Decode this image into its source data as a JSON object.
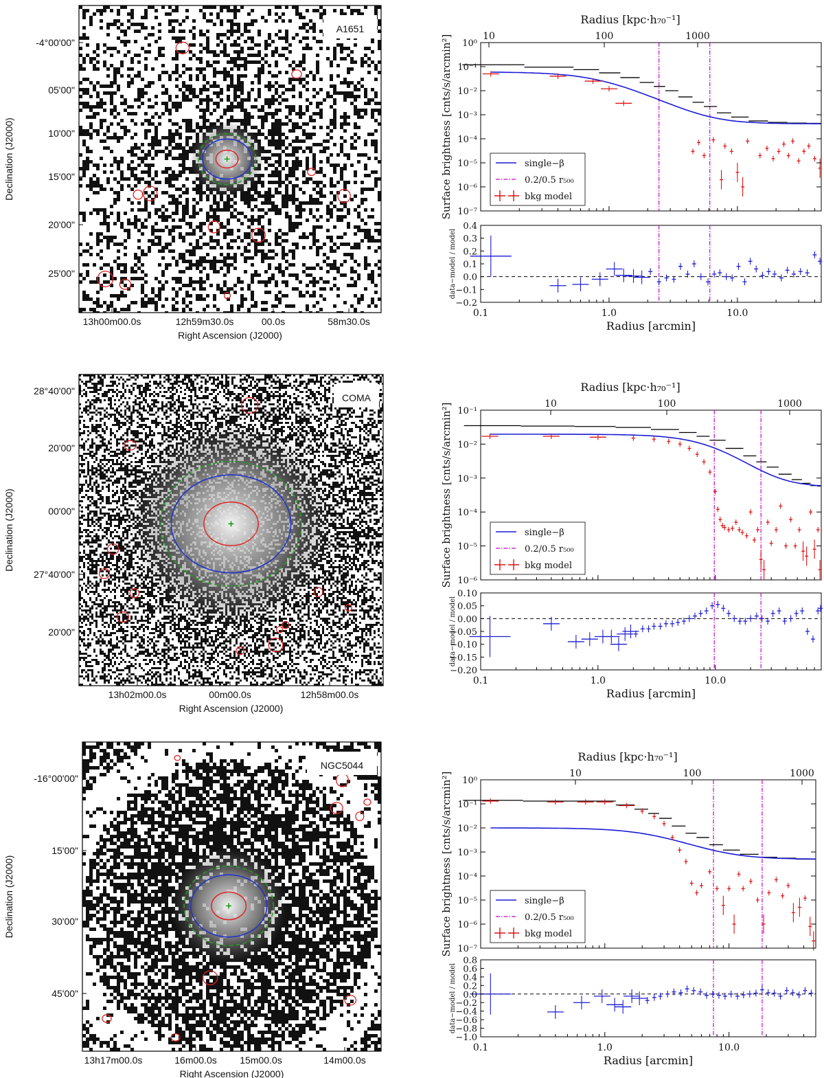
{
  "figure": {
    "panels": [
      {
        "image": {
          "name": "A1651",
          "style": "sparse",
          "dec_ticks": [
            "-4°00'00\"",
            "05'00\"",
            "10'00\"",
            "15'00\"",
            "20'00\"",
            "25'00\""
          ],
          "ra_ticks": [
            "13h00m00.0s",
            "12h59m30.0s",
            "00.0s",
            "58m30.0s"
          ],
          "xlabel": "Right Ascension (J2000)",
          "ylabel": "Declination (J2000)"
        },
        "profile": {
          "top_axis_label": "Radius [kpc·h₇₀⁻¹]",
          "top_ticks": [
            "10",
            "100",
            "1000"
          ],
          "ylabel": "Surface brightness [cnts/s/arcmin²]",
          "y_ticks": [
            "10⁰",
            "10⁻¹",
            "10⁻²",
            "10⁻³",
            "10⁻⁴",
            "10⁻⁵",
            "10⁻⁶",
            "10⁻⁷"
          ],
          "legend": [
            "single−β",
            "0.2/0.5 r₅₀₀",
            "bkg model"
          ],
          "res_ylabel": "data−model / model",
          "res_ticks": [
            "0.4",
            "0.3",
            "0.2",
            "0.1",
            "0.0",
            "−0.1",
            "−0.2"
          ],
          "x_ticks": [
            "0.1",
            "1.0",
            "10.0"
          ],
          "xlabel": "Radius [arcmin]"
        }
      },
      {
        "image": {
          "name": "COMA",
          "style": "diffuse",
          "dec_ticks": [
            "28°40'00\"",
            "20'00\"",
            "00'00\"",
            "27°40'00\"",
            "20'00\""
          ],
          "ra_ticks": [
            "13h02m00.0s",
            "00m00.0s",
            "12h58m00.0s"
          ],
          "xlabel": "Right Ascension (J2000)",
          "ylabel": "Declination (J2000)"
        },
        "profile": {
          "top_axis_label": "Radius [kpc·h₇₀⁻¹]",
          "top_ticks": [
            "10",
            "100",
            "1000"
          ],
          "ylabel": "Surface brightness [cnts/s/arcmin²]",
          "y_ticks": [
            "10⁻¹",
            "10⁻²",
            "10⁻³",
            "10⁻⁴",
            "10⁻⁵",
            "10⁻⁶"
          ],
          "legend": [
            "single−β",
            "0.2/0.5 r₅₀₀",
            "bkg model"
          ],
          "res_ylabel": "data−model / model",
          "res_ticks": [
            "0.10",
            "0.05",
            "0.00",
            "−0.05",
            "−0.10",
            "−0.15",
            "−0.20"
          ],
          "x_ticks": [
            "0.1",
            "1.0",
            "10.0"
          ],
          "xlabel": "Radius [arcmin]"
        }
      },
      {
        "image": {
          "name": "NGC5044",
          "style": "ring",
          "dec_ticks": [
            "-16°00'00\"",
            "15'00\"",
            "30'00\"",
            "45'00\""
          ],
          "ra_ticks": [
            "13h17m00.0s",
            "16m00.0s",
            "15m00.0s",
            "14m00.0s"
          ],
          "xlabel": "Right Ascension (J2000)",
          "ylabel": "Declination (J2000)"
        },
        "profile": {
          "top_axis_label": "Radius [kpc·h₇₀⁻¹]",
          "top_ticks": [
            "10",
            "100",
            "1000"
          ],
          "ylabel": "Surface brightness [cnts/s/arcmin²]",
          "y_ticks": [
            "10⁰",
            "10⁻¹",
            "10⁻²",
            "10⁻³",
            "10⁻⁴",
            "10⁻⁵",
            "10⁻⁶",
            "10⁻⁷"
          ],
          "legend": [
            "single−β",
            "0.2/0.5 r₅₀₀",
            "bkg model"
          ],
          "res_ylabel": "data−model / model",
          "res_ticks": [
            "0.8",
            "0.6",
            "0.4",
            "0.2",
            "0.0",
            "−0.2",
            "−0.4",
            "−0.6",
            "−0.8",
            "−1.0"
          ],
          "x_ticks": [
            "0.1",
            "1.0",
            "10.0"
          ],
          "xlabel": "Radius [arcmin]"
        }
      }
    ]
  },
  "chart_data": [
    {
      "type": "line",
      "cluster": "A1651",
      "xlabel": "Radius [arcmin]",
      "ylabel": "Surface brightness [cnts/s/arcmin²]",
      "x_scale": "log",
      "y_scale": "log",
      "xlim": [
        0.1,
        45
      ],
      "ylim": [
        1e-07,
        1
      ],
      "r500_lines_arcmin": [
        2.45,
        6.1
      ],
      "beta_model": {
        "S0": 0.06,
        "rc": 0.9,
        "beta": 0.6,
        "bkg": 0.00042
      },
      "data_total": {
        "x": [
          0.12,
          0.4,
          0.7,
          1.0,
          1.5,
          2.0,
          2.5,
          3.0,
          4.0,
          5.0,
          6.0,
          8.0,
          10.0,
          15.0,
          20.0,
          30.0,
          40.0
        ],
        "y": [
          0.12,
          0.095,
          0.075,
          0.055,
          0.035,
          0.022,
          0.015,
          0.01,
          0.0055,
          0.0033,
          0.0022,
          0.0012,
          0.0008,
          0.00055,
          0.00048,
          0.00045,
          0.00044
        ]
      },
      "bkg_model": {
        "x": [
          0.12,
          0.4,
          0.75,
          1.0,
          1.3,
          4.5,
          5.0,
          5.5,
          6.5,
          7.5,
          8.0,
          9.0,
          10.0,
          11.0,
          12.0,
          15.0,
          17.0,
          19.0,
          21.0,
          23.0,
          25.0,
          27.0,
          30.0,
          33.0,
          36.0,
          40.0,
          44.0
        ],
        "y": [
          0.05,
          0.04,
          0.025,
          0.012,
          0.003,
          3e-05,
          7e-05,
          2e-05,
          9e-05,
          2e-06,
          5e-05,
          3e-05,
          4e-06,
          1e-06,
          8e-05,
          2e-05,
          4e-05,
          1.5e-05,
          3e-05,
          6e-05,
          2e-05,
          8e-05,
          1.2e-05,
          3e-05,
          5e-05,
          1.5e-05,
          6e-06
        ]
      },
      "residuals": {
        "x": [
          0.12,
          0.4,
          0.6,
          0.85,
          1.1,
          1.3,
          1.55,
          1.8,
          2.1,
          2.45,
          2.8,
          3.2,
          3.6,
          4.1,
          4.6,
          5.2,
          5.9,
          6.6,
          7.3,
          8.2,
          9.1,
          10.2,
          11.4,
          12.6,
          14.0,
          15.7,
          17.5,
          19.5,
          22.0,
          24.5,
          27.5,
          31.0,
          35.0,
          40.0,
          44.0
        ],
        "y": [
          0.16,
          -0.07,
          -0.06,
          -0.02,
          0.06,
          0.01,
          0.005,
          -0.005,
          0.04,
          -0.04,
          -0.01,
          -0.02,
          0.08,
          0.02,
          0.1,
          0.0,
          -0.04,
          0.02,
          0.03,
          0.0,
          -0.01,
          0.08,
          -0.04,
          0.12,
          0.06,
          0.01,
          0.04,
          0.02,
          -0.01,
          0.05,
          0.02,
          0.04,
          0.03,
          0.17,
          0.12
        ],
        "ylim": [
          -0.2,
          0.4
        ]
      }
    },
    {
      "type": "line",
      "cluster": "COMA",
      "xlabel": "Radius [arcmin]",
      "ylabel": "Surface brightness [cnts/s/arcmin²]",
      "x_scale": "log",
      "y_scale": "log",
      "xlim": [
        0.1,
        80
      ],
      "ylim": [
        1e-06,
        0.1
      ],
      "r500_lines_arcmin": [
        9.8,
        24.5
      ],
      "beta_model": {
        "S0": 0.019,
        "rc": 10.0,
        "beta": 0.65,
        "bkg": 0.00055
      },
      "data_total": {
        "x": [
          0.12,
          0.4,
          1.0,
          2.0,
          4.0,
          6.0,
          8.0,
          10.0,
          15.0,
          20.0,
          25.0,
          30.0,
          40.0,
          50.0,
          60.0,
          70.0,
          78.0
        ],
        "y": [
          0.035,
          0.034,
          0.033,
          0.031,
          0.027,
          0.022,
          0.017,
          0.013,
          0.0075,
          0.0045,
          0.003,
          0.0021,
          0.0013,
          0.0009,
          0.0007,
          0.0006,
          0.00058
        ]
      },
      "bkg_model": {
        "x": [
          0.12,
          0.4,
          1.0,
          2.0,
          3.0,
          4.0,
          5.0,
          6.0,
          7.0,
          8.0,
          9.0,
          10.0,
          10.5,
          11.0,
          11.5,
          12.0,
          13.0,
          14.0,
          15.0,
          16.0,
          17.0,
          18.5,
          20.0,
          21.5,
          23.0,
          24.5,
          26.0,
          28.0,
          30.0,
          33.0,
          36.0,
          40.0,
          44.0,
          48.0,
          52.0,
          56.0,
          60.0,
          65.0,
          70.0,
          75.0,
          78.0
        ],
        "y": [
          0.017,
          0.017,
          0.016,
          0.015,
          0.014,
          0.012,
          0.01,
          0.0075,
          0.005,
          0.003,
          0.0015,
          0.0004,
          0.00012,
          6e-05,
          4e-05,
          3.5e-05,
          3e-05,
          3.3e-05,
          5e-05,
          3e-05,
          2.5e-05,
          2e-05,
          0.0001,
          1.5e-05,
          3e-05,
          4e-06,
          2e-06,
          5e-05,
          1.2e-05,
          3e-05,
          0.00015,
          1e-05,
          6e-05,
          1e-05,
          3e-05,
          7e-06,
          5e-06,
          0.0001,
          8e-06,
          3e-05,
          2e-06
        ]
      },
      "residuals": {
        "x": [
          0.12,
          0.4,
          0.65,
          0.85,
          1.1,
          1.3,
          1.5,
          1.7,
          1.9,
          2.1,
          2.4,
          2.7,
          3.0,
          3.4,
          3.8,
          4.3,
          4.8,
          5.4,
          6.0,
          6.7,
          7.5,
          8.4,
          9.4,
          10.5,
          11.7,
          13.0,
          14.5,
          16.2,
          18.0,
          20.0,
          22.5,
          25.0,
          28.0,
          31.0,
          35.0,
          39.0,
          44.0,
          49.0,
          55.0,
          61.0,
          68.0,
          75.0,
          79.0
        ],
        "y": [
          -0.07,
          -0.02,
          -0.09,
          -0.08,
          -0.07,
          -0.07,
          -0.1,
          -0.06,
          -0.05,
          -0.06,
          -0.04,
          -0.04,
          -0.03,
          -0.03,
          -0.02,
          -0.02,
          -0.015,
          -0.01,
          0.0,
          0.01,
          0.02,
          0.03,
          0.05,
          0.055,
          0.04,
          0.02,
          0.0,
          -0.01,
          -0.01,
          0.0,
          0.01,
          0.0,
          -0.01,
          0.02,
          0.03,
          -0.01,
          0.0,
          0.02,
          0.03,
          -0.05,
          -0.08,
          0.03,
          0.04
        ],
        "ylim": [
          -0.2,
          0.1
        ]
      }
    },
    {
      "type": "line",
      "cluster": "NGC5044",
      "xlabel": "Radius [arcmin]",
      "ylabel": "Surface brightness [cnts/s/arcmin²]",
      "x_scale": "log",
      "y_scale": "log",
      "xlim": [
        0.1,
        50
      ],
      "ylim": [
        1e-07,
        1
      ],
      "r500_lines_arcmin": [
        7.5,
        18.5
      ],
      "beta_model": {
        "S0": 0.0095,
        "rc": 2.5,
        "beta": 0.55,
        "bkg": 0.0005
      },
      "data_total": {
        "x": [
          0.12,
          0.4,
          0.7,
          1.0,
          1.5,
          2.0,
          2.5,
          3.0,
          4.0,
          5.0,
          6.0,
          8.0,
          10.0,
          15.0,
          20.0,
          30.0,
          40.0,
          48.0
        ],
        "y": [
          0.14,
          0.13,
          0.13,
          0.13,
          0.09,
          0.06,
          0.04,
          0.025,
          0.012,
          0.006,
          0.004,
          0.002,
          0.0012,
          0.0008,
          0.0006,
          0.00055,
          0.0005,
          0.0005
        ]
      },
      "bkg_model": {
        "x": [
          0.12,
          0.4,
          0.7,
          1.0,
          1.5,
          2.0,
          2.5,
          3.0,
          3.5,
          4.0,
          4.5,
          5.0,
          5.5,
          6.0,
          7.0,
          8.0,
          9.0,
          10.0,
          11.0,
          12.0,
          13.0,
          15.0,
          17.0,
          19.0,
          21.0,
          24.0,
          27.0,
          30.0,
          33.0,
          37.0,
          41.0,
          45.0,
          48.0
        ],
        "y": [
          0.13,
          0.12,
          0.12,
          0.12,
          0.085,
          0.05,
          0.03,
          0.015,
          0.004,
          0.0012,
          0.0004,
          5e-05,
          2e-05,
          4e-05,
          0.00015,
          3e-05,
          6e-06,
          3e-05,
          1e-06,
          0.00012,
          3e-05,
          6e-05,
          1e-05,
          1e-06,
          2e-05,
          7e-05,
          1.5e-05,
          4e-05,
          3e-06,
          5e-06,
          1.2e-05,
          8e-07,
          2e-07
        ]
      },
      "residuals": {
        "x": [
          0.12,
          0.4,
          0.65,
          0.95,
          1.2,
          1.4,
          1.65,
          1.9,
          2.2,
          2.5,
          2.8,
          3.2,
          3.6,
          4.1,
          4.6,
          5.2,
          5.9,
          6.6,
          7.4,
          8.3,
          9.3,
          10.4,
          11.7,
          13.1,
          14.7,
          16.5,
          18.5,
          20.7,
          23.2,
          26.0,
          29.2,
          32.7,
          36.7,
          41.0,
          46.0
        ],
        "y": [
          0.0,
          -0.42,
          -0.2,
          -0.05,
          -0.25,
          -0.3,
          -0.05,
          -0.1,
          -0.15,
          -0.08,
          -0.05,
          0.0,
          0.05,
          0.03,
          0.12,
          0.08,
          0.05,
          -0.03,
          0.0,
          -0.03,
          -0.05,
          0.0,
          -0.05,
          -0.02,
          0.0,
          0.02,
          0.1,
          0.03,
          0.02,
          -0.05,
          0.08,
          0.03,
          -0.02,
          0.08,
          0.02
        ],
        "ylim": [
          -1.0,
          0.8
        ]
      }
    }
  ]
}
